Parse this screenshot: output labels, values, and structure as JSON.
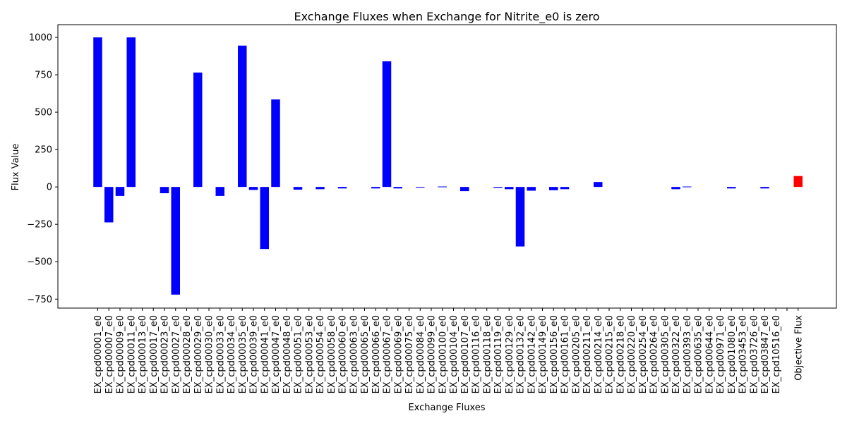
{
  "chart_data": {
    "type": "bar",
    "title": "Exchange Fluxes when Exchange for Nitrite_e0 is zero",
    "xlabel": "Exchange Fluxes",
    "ylabel": "Flux Value",
    "ylim": [
      -810,
      1085
    ],
    "yticks": [
      -750,
      -500,
      -250,
      0,
      250,
      500,
      750,
      1000
    ],
    "grid": false,
    "colors": {
      "exchange": "#0000ff",
      "objective": "#ff0000"
    },
    "categories": [
      "EX_cpd00001_e0",
      "EX_cpd00007_e0",
      "EX_cpd00009_e0",
      "EX_cpd00011_e0",
      "EX_cpd00013_e0",
      "EX_cpd00017_e0",
      "EX_cpd00023_e0",
      "EX_cpd00027_e0",
      "EX_cpd00028_e0",
      "EX_cpd00029_e0",
      "EX_cpd00030_e0",
      "EX_cpd00033_e0",
      "EX_cpd00034_e0",
      "EX_cpd00035_e0",
      "EX_cpd00039_e0",
      "EX_cpd00041_e0",
      "EX_cpd00047_e0",
      "EX_cpd00048_e0",
      "EX_cpd00051_e0",
      "EX_cpd00053_e0",
      "EX_cpd00054_e0",
      "EX_cpd00058_e0",
      "EX_cpd00060_e0",
      "EX_cpd00063_e0",
      "EX_cpd00065_e0",
      "EX_cpd00066_e0",
      "EX_cpd00067_e0",
      "EX_cpd00069_e0",
      "EX_cpd00075_e0",
      "EX_cpd00084_e0",
      "EX_cpd00099_e0",
      "EX_cpd00100_e0",
      "EX_cpd00104_e0",
      "EX_cpd00107_e0",
      "EX_cpd00116_e0",
      "EX_cpd00118_e0",
      "EX_cpd00119_e0",
      "EX_cpd00129_e0",
      "EX_cpd00132_e0",
      "EX_cpd00142_e0",
      "EX_cpd00149_e0",
      "EX_cpd00156_e0",
      "EX_cpd00161_e0",
      "EX_cpd00205_e0",
      "EX_cpd00211_e0",
      "EX_cpd00214_e0",
      "EX_cpd00215_e0",
      "EX_cpd00218_e0",
      "EX_cpd00220_e0",
      "EX_cpd00254_e0",
      "EX_cpd00264_e0",
      "EX_cpd00305_e0",
      "EX_cpd00322_e0",
      "EX_cpd00393_e0",
      "EX_cpd00635_e0",
      "EX_cpd00644_e0",
      "EX_cpd00971_e0",
      "EX_cpd01080_e0",
      "EX_cpd03453_e0",
      "EX_cpd03726_e0",
      "EX_cpd03847_e0",
      "EX_cpd10516_e0",
      "",
      "Objective Flux"
    ],
    "values": [
      1000,
      -237,
      -60,
      1000,
      0,
      0,
      -42,
      -720,
      0,
      765,
      0,
      -60,
      0,
      945,
      -20,
      -415,
      585,
      0,
      -18,
      0,
      -15,
      0,
      -10,
      0,
      0,
      -10,
      840,
      -10,
      0,
      -5,
      0,
      3,
      0,
      -28,
      0,
      0,
      -6,
      -15,
      -398,
      -25,
      0,
      -22,
      -15,
      0,
      0,
      33,
      0,
      0,
      0,
      0,
      0,
      0,
      -15,
      3,
      0,
      0,
      0,
      -10,
      0,
      0,
      -10,
      0,
      0,
      73
    ],
    "bar_colors": [
      "exchange",
      "exchange",
      "exchange",
      "exchange",
      "exchange",
      "exchange",
      "exchange",
      "exchange",
      "exchange",
      "exchange",
      "exchange",
      "exchange",
      "exchange",
      "exchange",
      "exchange",
      "exchange",
      "exchange",
      "exchange",
      "exchange",
      "exchange",
      "exchange",
      "exchange",
      "exchange",
      "exchange",
      "exchange",
      "exchange",
      "exchange",
      "exchange",
      "exchange",
      "exchange",
      "exchange",
      "exchange",
      "exchange",
      "exchange",
      "exchange",
      "exchange",
      "exchange",
      "exchange",
      "exchange",
      "exchange",
      "exchange",
      "exchange",
      "exchange",
      "exchange",
      "exchange",
      "exchange",
      "exchange",
      "exchange",
      "exchange",
      "exchange",
      "exchange",
      "exchange",
      "exchange",
      "exchange",
      "exchange",
      "exchange",
      "exchange",
      "exchange",
      "exchange",
      "exchange",
      "exchange",
      "exchange",
      "exchange",
      "objective"
    ]
  }
}
